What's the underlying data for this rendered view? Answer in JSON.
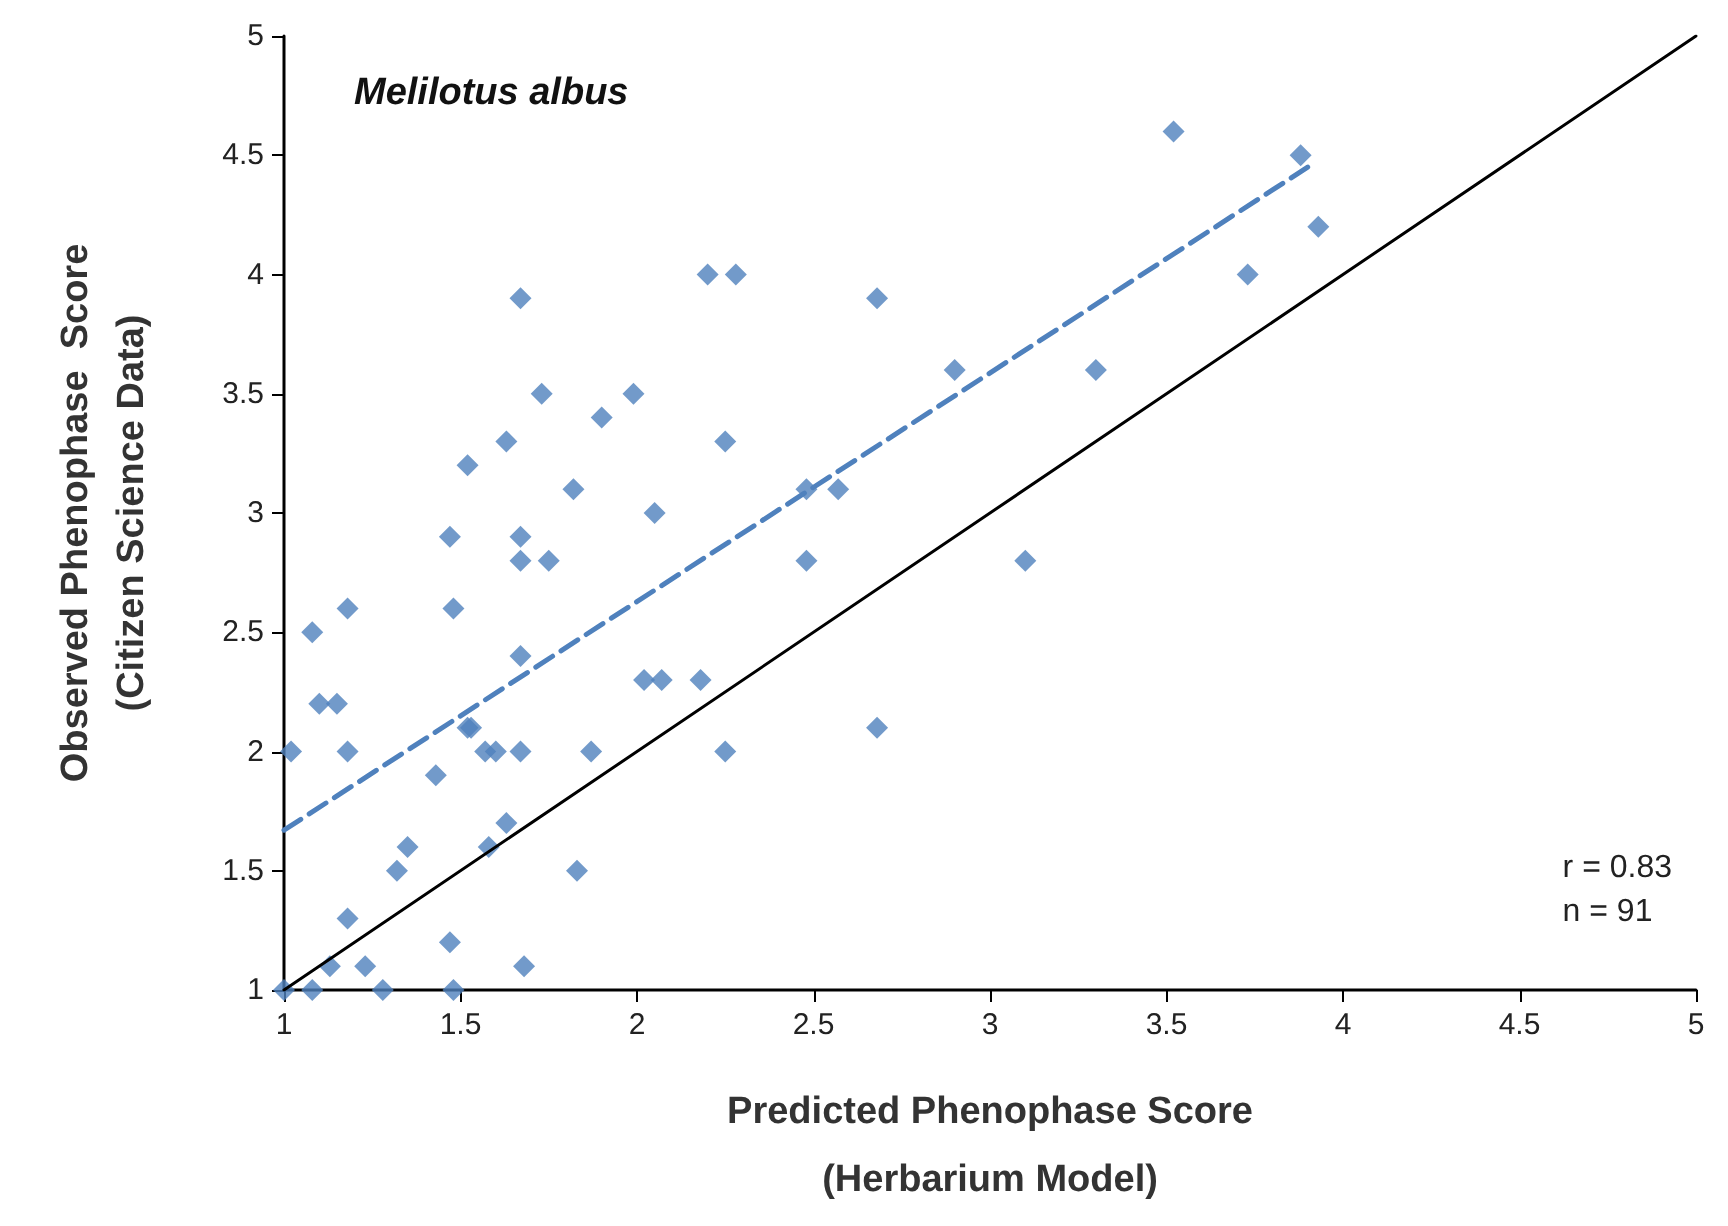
{
  "chart_data": {
    "type": "scatter",
    "title": "Melilotus albus",
    "xlabel": "Predicted Phenophase Score\n(Herbarium Model)",
    "ylabel": "Observed Phenophase  Score\n(Citizen Science Data)",
    "annotations": [
      "r = 0.83",
      "n = 91"
    ],
    "xlim": [
      1,
      5
    ],
    "ylim": [
      1,
      5
    ],
    "xticks": [
      1,
      1.5,
      2,
      2.5,
      3,
      3.5,
      4,
      4.5,
      5
    ],
    "yticks": [
      1,
      1.5,
      2,
      2.5,
      3,
      3.5,
      4,
      4.5,
      5
    ],
    "grid": false,
    "series": [
      {
        "color": "#4f81bd",
        "marker": "diamond",
        "x": [
          1.0,
          1.08,
          1.13,
          1.23,
          1.28,
          1.48,
          1.47,
          1.18,
          1.32,
          1.35,
          1.43,
          1.68,
          1.83,
          1.58,
          1.63,
          1.52,
          1.53,
          1.57,
          1.6,
          1.67,
          1.87,
          1.02,
          1.18,
          1.1,
          1.15,
          1.08,
          1.18,
          1.48,
          1.67,
          1.47,
          1.67,
          1.67,
          1.75,
          1.52,
          1.63,
          1.82,
          1.73,
          1.9,
          1.99,
          1.67,
          2.2,
          2.28,
          2.05,
          2.25,
          2.02,
          2.07,
          2.18,
          2.25,
          2.48,
          2.57,
          2.48,
          2.68,
          2.68,
          2.9,
          3.1,
          3.3,
          3.52,
          3.73,
          3.88,
          3.93
        ],
        "values": [
          1.0,
          1.0,
          1.1,
          1.1,
          1.0,
          1.0,
          1.2,
          1.3,
          1.5,
          1.6,
          1.9,
          1.1,
          1.5,
          1.6,
          1.7,
          2.1,
          2.1,
          2.0,
          2.0,
          2.0,
          2.0,
          2.0,
          2.0,
          2.2,
          2.2,
          2.5,
          2.6,
          2.6,
          2.4,
          2.9,
          2.9,
          2.8,
          2.8,
          3.2,
          3.3,
          3.1,
          3.5,
          3.4,
          3.5,
          3.9,
          4.0,
          4.0,
          3.0,
          3.3,
          2.3,
          2.3,
          2.3,
          2.0,
          3.1,
          3.1,
          2.8,
          3.9,
          2.1,
          3.6,
          2.8,
          3.6,
          4.6,
          4.0,
          4.5,
          4.2
        ]
      },
      {
        "type": "line",
        "color": "#4f81bd",
        "marker": "none",
        "line_style": "dashed",
        "x": [
          1,
          3.9
        ],
        "values": [
          1.67,
          4.45
        ]
      },
      {
        "type": "line",
        "color": "#000000",
        "marker": "none",
        "line_style": "solid",
        "x": [
          1,
          5
        ],
        "values": [
          1,
          5
        ]
      }
    ]
  }
}
